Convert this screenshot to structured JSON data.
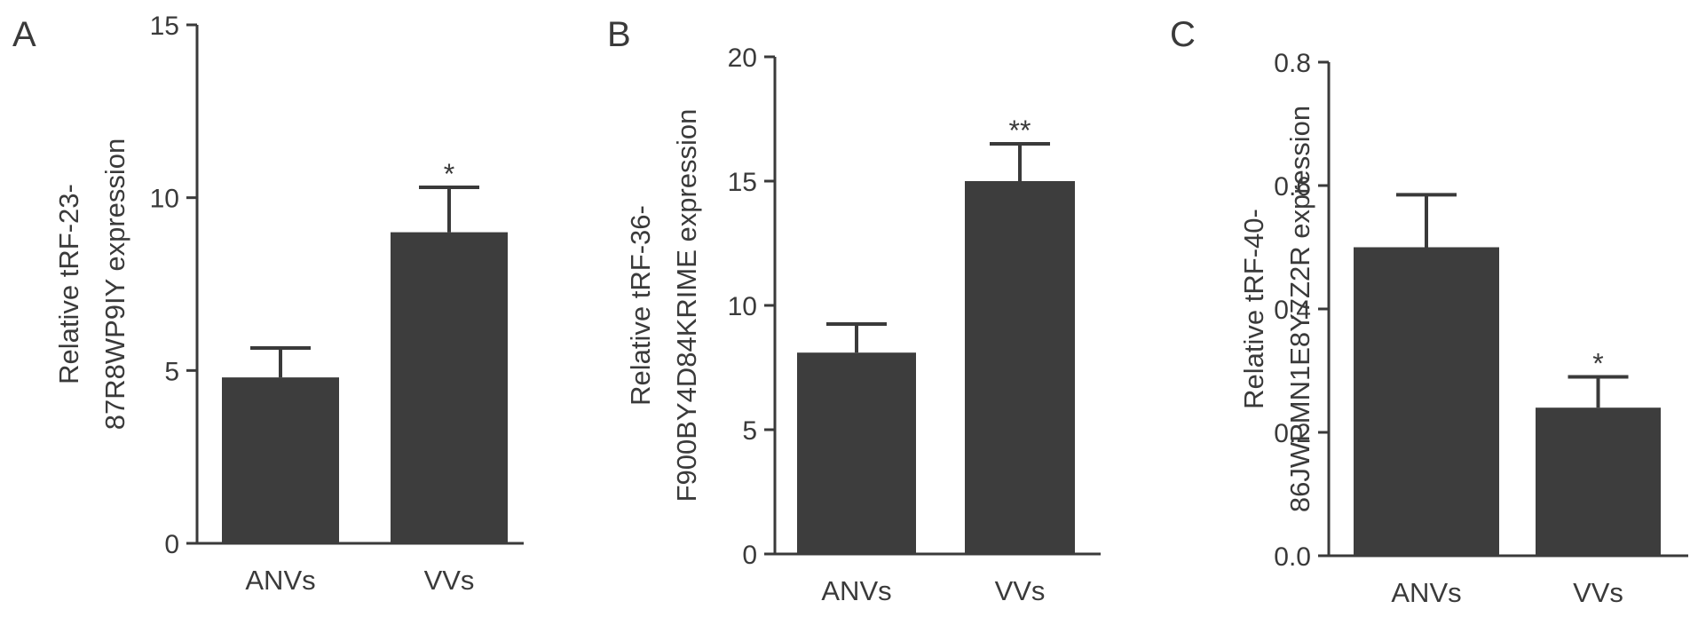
{
  "colors": {
    "bar": "#3d3d3d",
    "axis": "#3a3a3a",
    "text": "#3a3a3a"
  },
  "chart_data": [
    {
      "type": "bar",
      "panel_label": "A",
      "categories": [
        "ANVs",
        "VVs"
      ],
      "values": [
        4.8,
        9.0
      ],
      "errors": [
        0.85,
        1.3
      ],
      "significance": [
        "",
        "*"
      ],
      "ylabel_lines": [
        "Relative tRF-23-",
        "87R8WP9IY expression"
      ],
      "ylim": [
        0,
        15
      ],
      "yticks": [
        "0",
        "5",
        "10",
        "15"
      ],
      "ytick_values": [
        0,
        5,
        10,
        15
      ],
      "grid": false,
      "legend": "none"
    },
    {
      "type": "bar",
      "panel_label": "B",
      "categories": [
        "ANVs",
        "VVs"
      ],
      "values": [
        8.1,
        15.0
      ],
      "errors": [
        1.15,
        1.5
      ],
      "significance": [
        "",
        "**"
      ],
      "ylabel_lines": [
        "Relative tRF-36-",
        "F900BY4D84KRIME expression"
      ],
      "ylim": [
        0,
        20
      ],
      "yticks": [
        "0",
        "5",
        "10",
        "15",
        "20"
      ],
      "ytick_values": [
        0,
        5,
        10,
        15,
        20
      ],
      "grid": false,
      "legend": "none"
    },
    {
      "type": "bar",
      "panel_label": "C",
      "categories": [
        "ANVs",
        "VVs"
      ],
      "values": [
        0.5,
        0.24
      ],
      "errors": [
        0.085,
        0.05
      ],
      "significance": [
        "",
        "*"
      ],
      "ylabel_lines": [
        "Relative tRF-40-",
        "86JWPMN1E8Y7Z2R  expression"
      ],
      "ylim": [
        0,
        0.8
      ],
      "yticks": [
        "0.0",
        "0.2",
        "0.4",
        "0.6",
        "0.8"
      ],
      "ytick_values": [
        0,
        0.2,
        0.4,
        0.6,
        0.8
      ],
      "grid": false,
      "legend": "none"
    }
  ]
}
